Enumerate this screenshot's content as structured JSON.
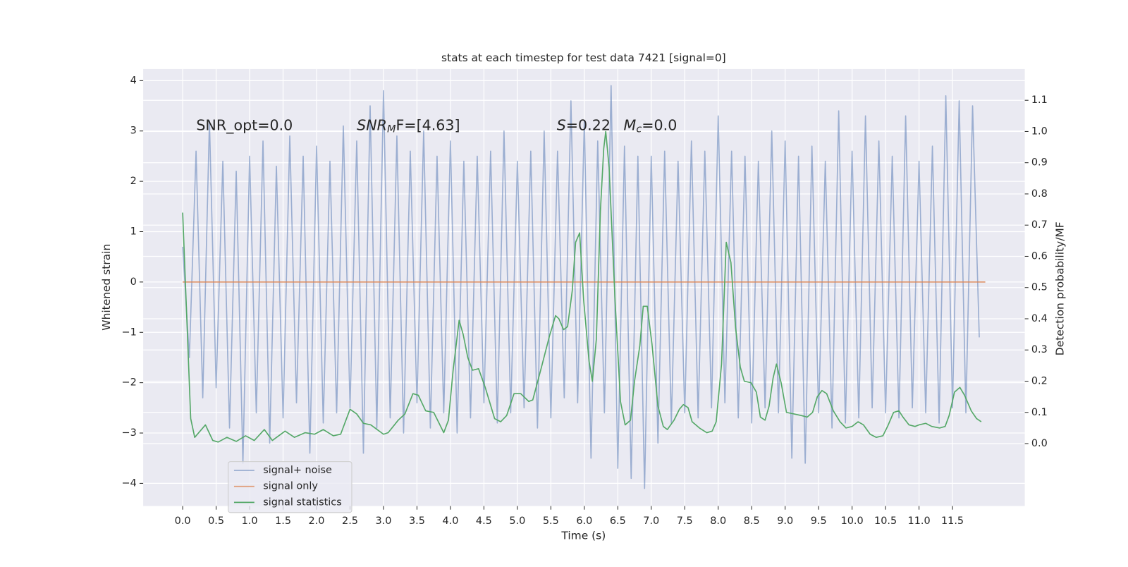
{
  "chart_data": {
    "type": "line",
    "title": "stats at each timestep for test data 7421 [signal=0]",
    "x_label": "Time (s)",
    "y_label": "Whitened strain",
    "y2_label": "Detection probability/MF",
    "xlim": [
      -0.59,
      12.58
    ],
    "ylim": [
      -4.45,
      4.23
    ],
    "y2lim": [
      -0.2,
      1.2
    ],
    "xticks": [
      {
        "value": 0,
        "label": "0.0"
      },
      0.5,
      {
        "value": 1,
        "label": "1.0"
      },
      1.5,
      {
        "value": 2,
        "label": "2.0"
      },
      2.5,
      {
        "value": 3,
        "label": "3.0"
      },
      3.5,
      {
        "value": 4,
        "label": "4.0"
      },
      4.5,
      {
        "value": 5,
        "label": "5.0"
      },
      5.5,
      {
        "value": 6,
        "label": "6.0"
      },
      6.5,
      {
        "value": 7,
        "label": "7.0"
      },
      7.5,
      {
        "value": 8,
        "label": "8.0"
      },
      8.5,
      {
        "value": 9,
        "label": "9.0"
      },
      9.5,
      {
        "value": 10,
        "label": "10.0"
      },
      10.5,
      {
        "value": 11,
        "label": "11.0"
      },
      11.5
    ],
    "yticks": [
      {
        "value": -4,
        "label": "−4"
      },
      {
        "value": -3,
        "label": "−3"
      },
      {
        "value": -2,
        "label": "−2"
      },
      {
        "value": -1,
        "label": "−1"
      },
      0,
      1,
      2,
      3,
      4
    ],
    "y2ticks": [
      {
        "value": 0,
        "label": "0.0"
      },
      0.1,
      0.2,
      0.3,
      0.4,
      0.5,
      0.6,
      0.7,
      0.8,
      0.9,
      {
        "value": 1,
        "label": "1.0"
      },
      1.1
    ],
    "grid": true,
    "legend": "lower left",
    "annotations": [
      [
        {
          "text": "SNR_opt=0.0"
        }
      ],
      [
        {
          "text": "SNR",
          "style": "italic"
        },
        {
          "text": "M",
          "style": "italic-sub"
        },
        {
          "text": "F=[4.63]"
        }
      ],
      [
        {
          "text": "S",
          "style": "italic"
        },
        {
          "text": "=0.22"
        }
      ],
      [
        {
          "text": "M",
          "style": "italic"
        },
        {
          "text": "c",
          "style": "italic-sub"
        },
        {
          "text": "=0.0"
        }
      ]
    ],
    "series": [
      {
        "name": "signal+ noise",
        "color": "#4c72b0",
        "alpha": 0.5,
        "x": [
          0,
          0.1,
          0.2,
          0.3,
          0.4,
          0.5,
          0.6,
          0.7,
          0.8,
          0.9,
          1,
          1.1,
          1.2,
          1.3,
          1.4,
          1.5,
          1.6,
          1.7,
          1.8,
          1.9,
          2,
          2.1,
          2.2,
          2.3,
          2.4,
          2.5,
          2.6,
          2.7,
          2.8,
          2.9,
          3,
          3.1,
          3.2,
          3.3,
          3.4,
          3.5,
          3.6,
          3.7,
          3.8,
          3.9,
          4,
          4.1,
          4.2,
          4.3,
          4.4,
          4.5,
          4.6,
          4.7,
          4.8,
          4.9,
          5,
          5.1,
          5.2,
          5.3,
          5.4,
          5.5,
          5.6,
          5.7,
          5.8,
          5.9,
          6,
          6.1,
          6.2,
          6.3,
          6.4,
          6.5,
          6.6,
          6.7,
          6.8,
          6.9,
          7,
          7.1,
          7.2,
          7.3,
          7.4,
          7.5,
          7.6,
          7.7,
          7.8,
          7.9,
          8,
          8.1,
          8.2,
          8.3,
          8.4,
          8.5,
          8.6,
          8.7,
          8.8,
          8.9,
          9,
          9.1,
          9.2,
          9.3,
          9.4,
          9.5,
          9.6,
          9.7,
          9.8,
          9.9,
          10,
          10.1,
          10.2,
          10.3,
          10.4,
          10.5,
          10.6,
          10.7,
          10.8,
          10.9,
          11,
          11.1,
          11.2,
          11.3,
          11.4,
          11.5,
          11.6,
          11.7,
          11.8,
          11.9
        ],
        "values": [
          0.7,
          -1.5,
          2.6,
          -2.3,
          3.2,
          -2.1,
          2.4,
          -2.9,
          2.2,
          -3.6,
          2.5,
          -2.6,
          2.8,
          -3.2,
          2.3,
          -2.7,
          2.9,
          -2.4,
          2.5,
          -3.4,
          2.7,
          -2.8,
          2.4,
          -2.6,
          3.1,
          -2.5,
          2.8,
          -3.4,
          3.5,
          -2.9,
          3.8,
          -2.7,
          2.9,
          -3.0,
          2.6,
          -2.4,
          3.0,
          -2.9,
          2.5,
          -2.6,
          2.8,
          -3.0,
          2.4,
          -2.7,
          2.5,
          -2.4,
          2.6,
          -2.8,
          3.0,
          -2.6,
          2.4,
          -2.5,
          2.6,
          -2.9,
          3.0,
          -2.7,
          2.6,
          -2.3,
          3.6,
          -2.4,
          3.2,
          -3.5,
          2.8,
          -2.6,
          3.9,
          -3.7,
          2.7,
          -3.9,
          2.5,
          -4.1,
          2.5,
          -3.2,
          2.6,
          -2.8,
          2.4,
          -2.6,
          2.8,
          -2.7,
          2.6,
          -2.5,
          3.3,
          -2.4,
          2.6,
          -2.7,
          2.5,
          -2.8,
          2.4,
          -2.5,
          3.0,
          -2.6,
          2.8,
          -3.5,
          2.5,
          -3.6,
          2.7,
          -2.6,
          2.4,
          -2.9,
          3.4,
          -2.8,
          2.6,
          -2.7,
          3.3,
          -2.5,
          2.8,
          -2.6,
          2.5,
          -2.7,
          3.3,
          -2.5,
          2.4,
          -2.6,
          2.7,
          -2.8,
          3.7,
          -2.5,
          3.6,
          -2.6,
          3.5,
          -1.1
        ]
      },
      {
        "name": "signal only",
        "color": "#dd8452",
        "alpha": 0.8,
        "x": [
          0,
          11.99
        ],
        "values": [
          0,
          0
        ]
      },
      {
        "name": "signal statistics",
        "color": "#55a868",
        "alpha": 1,
        "axis": "y2",
        "x": [
          0,
          0.12,
          0.18,
          0.34,
          0.45,
          0.53,
          0.66,
          0.8,
          0.94,
          1.07,
          1.22,
          1.34,
          1.53,
          1.67,
          1.83,
          1.97,
          2.1,
          2.25,
          2.36,
          2.5,
          2.6,
          2.7,
          2.81,
          3.0,
          3.07,
          3.22,
          3.32,
          3.44,
          3.52,
          3.63,
          3.75,
          3.9,
          3.97,
          4.04,
          4.13,
          4.19,
          4.26,
          4.33,
          4.42,
          4.52,
          4.66,
          4.75,
          4.84,
          4.95,
          5.05,
          5.17,
          5.23,
          5.36,
          5.48,
          5.57,
          5.62,
          5.69,
          5.75,
          5.82,
          5.87,
          5.93,
          5.99,
          6.07,
          6.12,
          6.18,
          6.24,
          6.29,
          6.32,
          6.37,
          6.46,
          6.54,
          6.61,
          6.69,
          6.75,
          6.83,
          6.88,
          6.94,
          7.01,
          7.1,
          7.18,
          7.24,
          7.34,
          7.42,
          7.48,
          7.55,
          7.61,
          7.72,
          7.83,
          7.91,
          7.97,
          8.05,
          8.12,
          8.19,
          8.26,
          8.33,
          8.39,
          8.49,
          8.57,
          8.63,
          8.7,
          8.76,
          8.82,
          8.87,
          8.94,
          9.02,
          9.13,
          9.24,
          9.33,
          9.41,
          9.48,
          9.55,
          9.62,
          9.72,
          9.82,
          9.91,
          10.0,
          10.09,
          10.17,
          10.27,
          10.36,
          10.46,
          10.53,
          10.62,
          10.7,
          10.76,
          10.85,
          10.94,
          11.0,
          11.1,
          11.19,
          11.31,
          11.39,
          11.45,
          11.53,
          11.61,
          11.68,
          11.78,
          11.86,
          11.93
        ],
        "values": [
          0.74,
          0.08,
          0.02,
          0.06,
          0.01,
          0.005,
          0.02,
          0.007,
          0.025,
          0.01,
          0.045,
          0.01,
          0.04,
          0.02,
          0.035,
          0.03,
          0.045,
          0.025,
          0.03,
          0.11,
          0.095,
          0.065,
          0.06,
          0.03,
          0.035,
          0.075,
          0.095,
          0.16,
          0.155,
          0.105,
          0.1,
          0.035,
          0.075,
          0.235,
          0.395,
          0.35,
          0.275,
          0.235,
          0.24,
          0.18,
          0.08,
          0.07,
          0.09,
          0.16,
          0.16,
          0.135,
          0.14,
          0.245,
          0.345,
          0.41,
          0.4,
          0.365,
          0.375,
          0.49,
          0.645,
          0.675,
          0.46,
          0.265,
          0.2,
          0.335,
          0.745,
          0.945,
          1.0,
          0.885,
          0.455,
          0.135,
          0.06,
          0.075,
          0.2,
          0.315,
          0.44,
          0.44,
          0.32,
          0.12,
          0.055,
          0.045,
          0.075,
          0.11,
          0.125,
          0.115,
          0.07,
          0.05,
          0.035,
          0.04,
          0.07,
          0.255,
          0.645,
          0.58,
          0.37,
          0.245,
          0.2,
          0.195,
          0.165,
          0.085,
          0.075,
          0.12,
          0.21,
          0.255,
          0.195,
          0.1,
          0.095,
          0.09,
          0.085,
          0.1,
          0.15,
          0.17,
          0.16,
          0.105,
          0.07,
          0.05,
          0.055,
          0.07,
          0.06,
          0.03,
          0.02,
          0.025,
          0.055,
          0.1,
          0.105,
          0.085,
          0.06,
          0.055,
          0.06,
          0.065,
          0.055,
          0.05,
          0.055,
          0.09,
          0.165,
          0.18,
          0.155,
          0.105,
          0.08,
          0.07
        ]
      }
    ]
  }
}
